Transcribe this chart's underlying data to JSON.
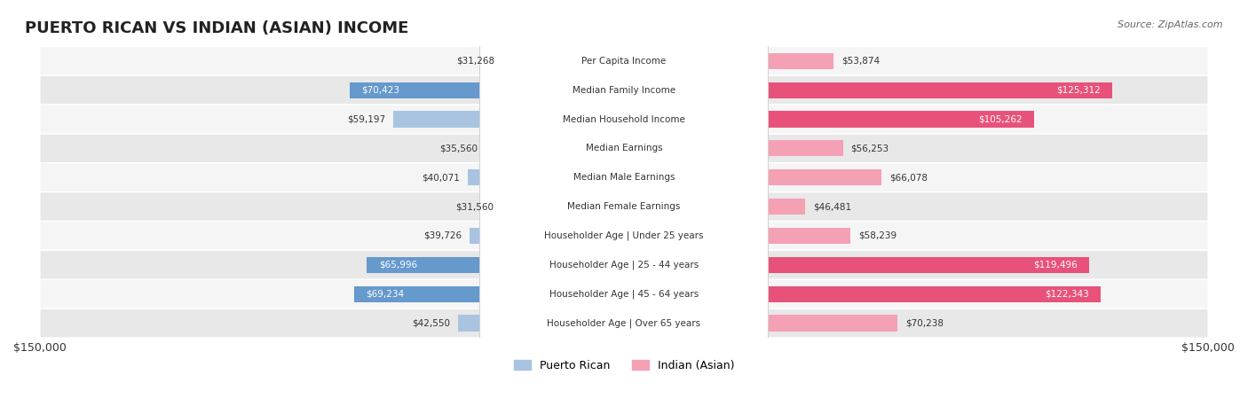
{
  "title": "PUERTO RICAN VS INDIAN (ASIAN) INCOME",
  "source": "Source: ZipAtlas.com",
  "categories": [
    "Per Capita Income",
    "Median Family Income",
    "Median Household Income",
    "Median Earnings",
    "Median Male Earnings",
    "Median Female Earnings",
    "Householder Age | Under 25 years",
    "Householder Age | 25 - 44 years",
    "Householder Age | 45 - 64 years",
    "Householder Age | Over 65 years"
  ],
  "puerto_rican": [
    31268,
    70423,
    59197,
    35560,
    40071,
    31560,
    39726,
    65996,
    69234,
    42550
  ],
  "indian": [
    53874,
    125312,
    105262,
    56253,
    66078,
    46481,
    58239,
    119496,
    122343,
    70238
  ],
  "puerto_rican_labels": [
    "$31,268",
    "$70,423",
    "$59,197",
    "$35,560",
    "$40,071",
    "$31,560",
    "$39,726",
    "$65,996",
    "$69,234",
    "$42,550"
  ],
  "indian_labels": [
    "$53,874",
    "$125,312",
    "$105,262",
    "$56,253",
    "$66,078",
    "$46,481",
    "$58,239",
    "$119,496",
    "$122,343",
    "$70,238"
  ],
  "max_val": 150000,
  "puerto_rican_color_light": "#a8c4e0",
  "puerto_rican_color_dark": "#6699cc",
  "indian_color_light": "#f4a0b5",
  "indian_color_dark": "#e8527a",
  "label_bg": "#f0f0f0",
  "row_bg_light": "#f5f5f5",
  "row_bg_dark": "#e8e8e8",
  "white_text_threshold_pr": 60000,
  "white_text_threshold_ind": 90000,
  "legend_pr": "Puerto Rican",
  "legend_ind": "Indian (Asian)"
}
